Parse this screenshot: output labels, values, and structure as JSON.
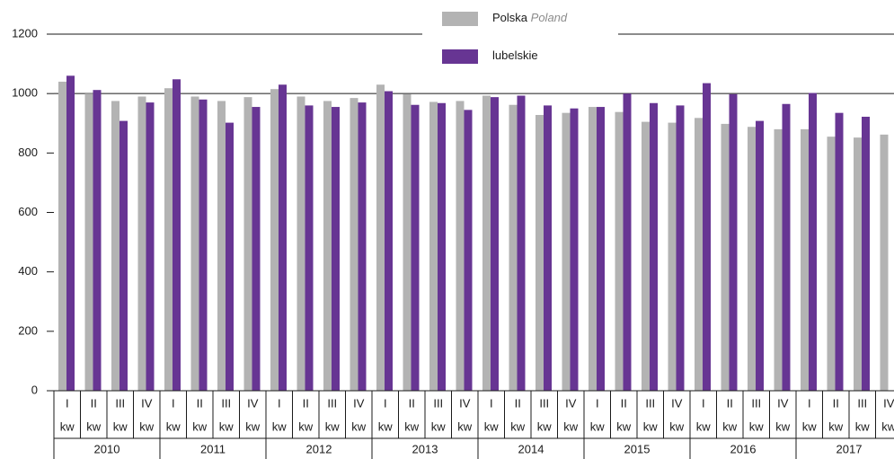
{
  "chart_data": {
    "type": "bar",
    "categories": [
      "I",
      "II",
      "III",
      "IV",
      "I",
      "II",
      "III",
      "IV",
      "I",
      "II",
      "III",
      "IV",
      "I",
      "II",
      "III",
      "IV",
      "I",
      "II",
      "III",
      "IV",
      "I",
      "II",
      "III",
      "IV",
      "I",
      "II",
      "III",
      "IV",
      "I",
      "II",
      "III",
      "IV"
    ],
    "category_suffix": "kw",
    "groups": [
      "2010",
      "2011",
      "2012",
      "2013",
      "2014",
      "2015",
      "2016",
      "2017"
    ],
    "series": [
      {
        "name": "Polska",
        "name_en": "Poland",
        "color": "#b3b3b3",
        "values": [
          1040,
          1000,
          975,
          990,
          1018,
          990,
          975,
          988,
          1015,
          990,
          975,
          985,
          1030,
          998,
          972,
          975,
          993,
          962,
          928,
          935,
          955,
          938,
          905,
          902,
          918,
          898,
          888,
          880,
          880,
          855,
          852,
          862
        ]
      },
      {
        "name": "lubelskie",
        "color": "#673593",
        "values": [
          1060,
          1012,
          908,
          970,
          1048,
          980,
          902,
          955,
          1030,
          960,
          955,
          970,
          1008,
          962,
          968,
          945,
          988,
          993,
          960,
          950,
          955,
          1000,
          968,
          960,
          1035,
          998,
          908,
          965,
          1002,
          935,
          922,
          null
        ]
      }
    ],
    "ylim": [
      0,
      1200
    ],
    "yticks": [
      0,
      200,
      400,
      600,
      800,
      1000,
      1200
    ],
    "grid_values": [
      1000,
      1200
    ]
  }
}
